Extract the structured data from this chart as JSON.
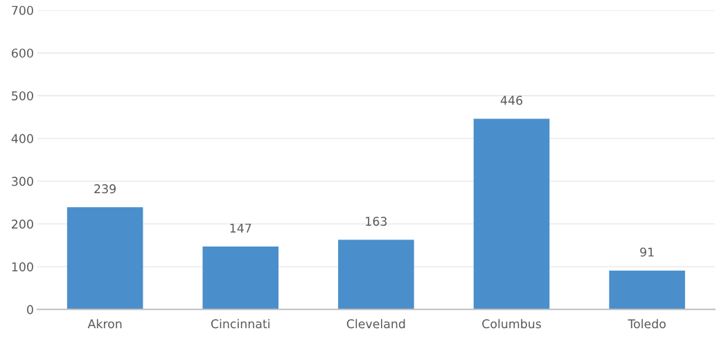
{
  "chart_data": {
    "type": "bar",
    "categories": [
      "Akron",
      "Cincinnati",
      "Cleveland",
      "Columbus",
      "Toledo"
    ],
    "values": [
      239,
      147,
      163,
      446,
      91
    ],
    "color": "#4a8fcb",
    "ylim": [
      0,
      700
    ],
    "yticks": [
      0,
      100,
      200,
      300,
      400,
      500,
      600,
      700
    ],
    "grid": "y",
    "data_labels": true,
    "legend": false
  }
}
